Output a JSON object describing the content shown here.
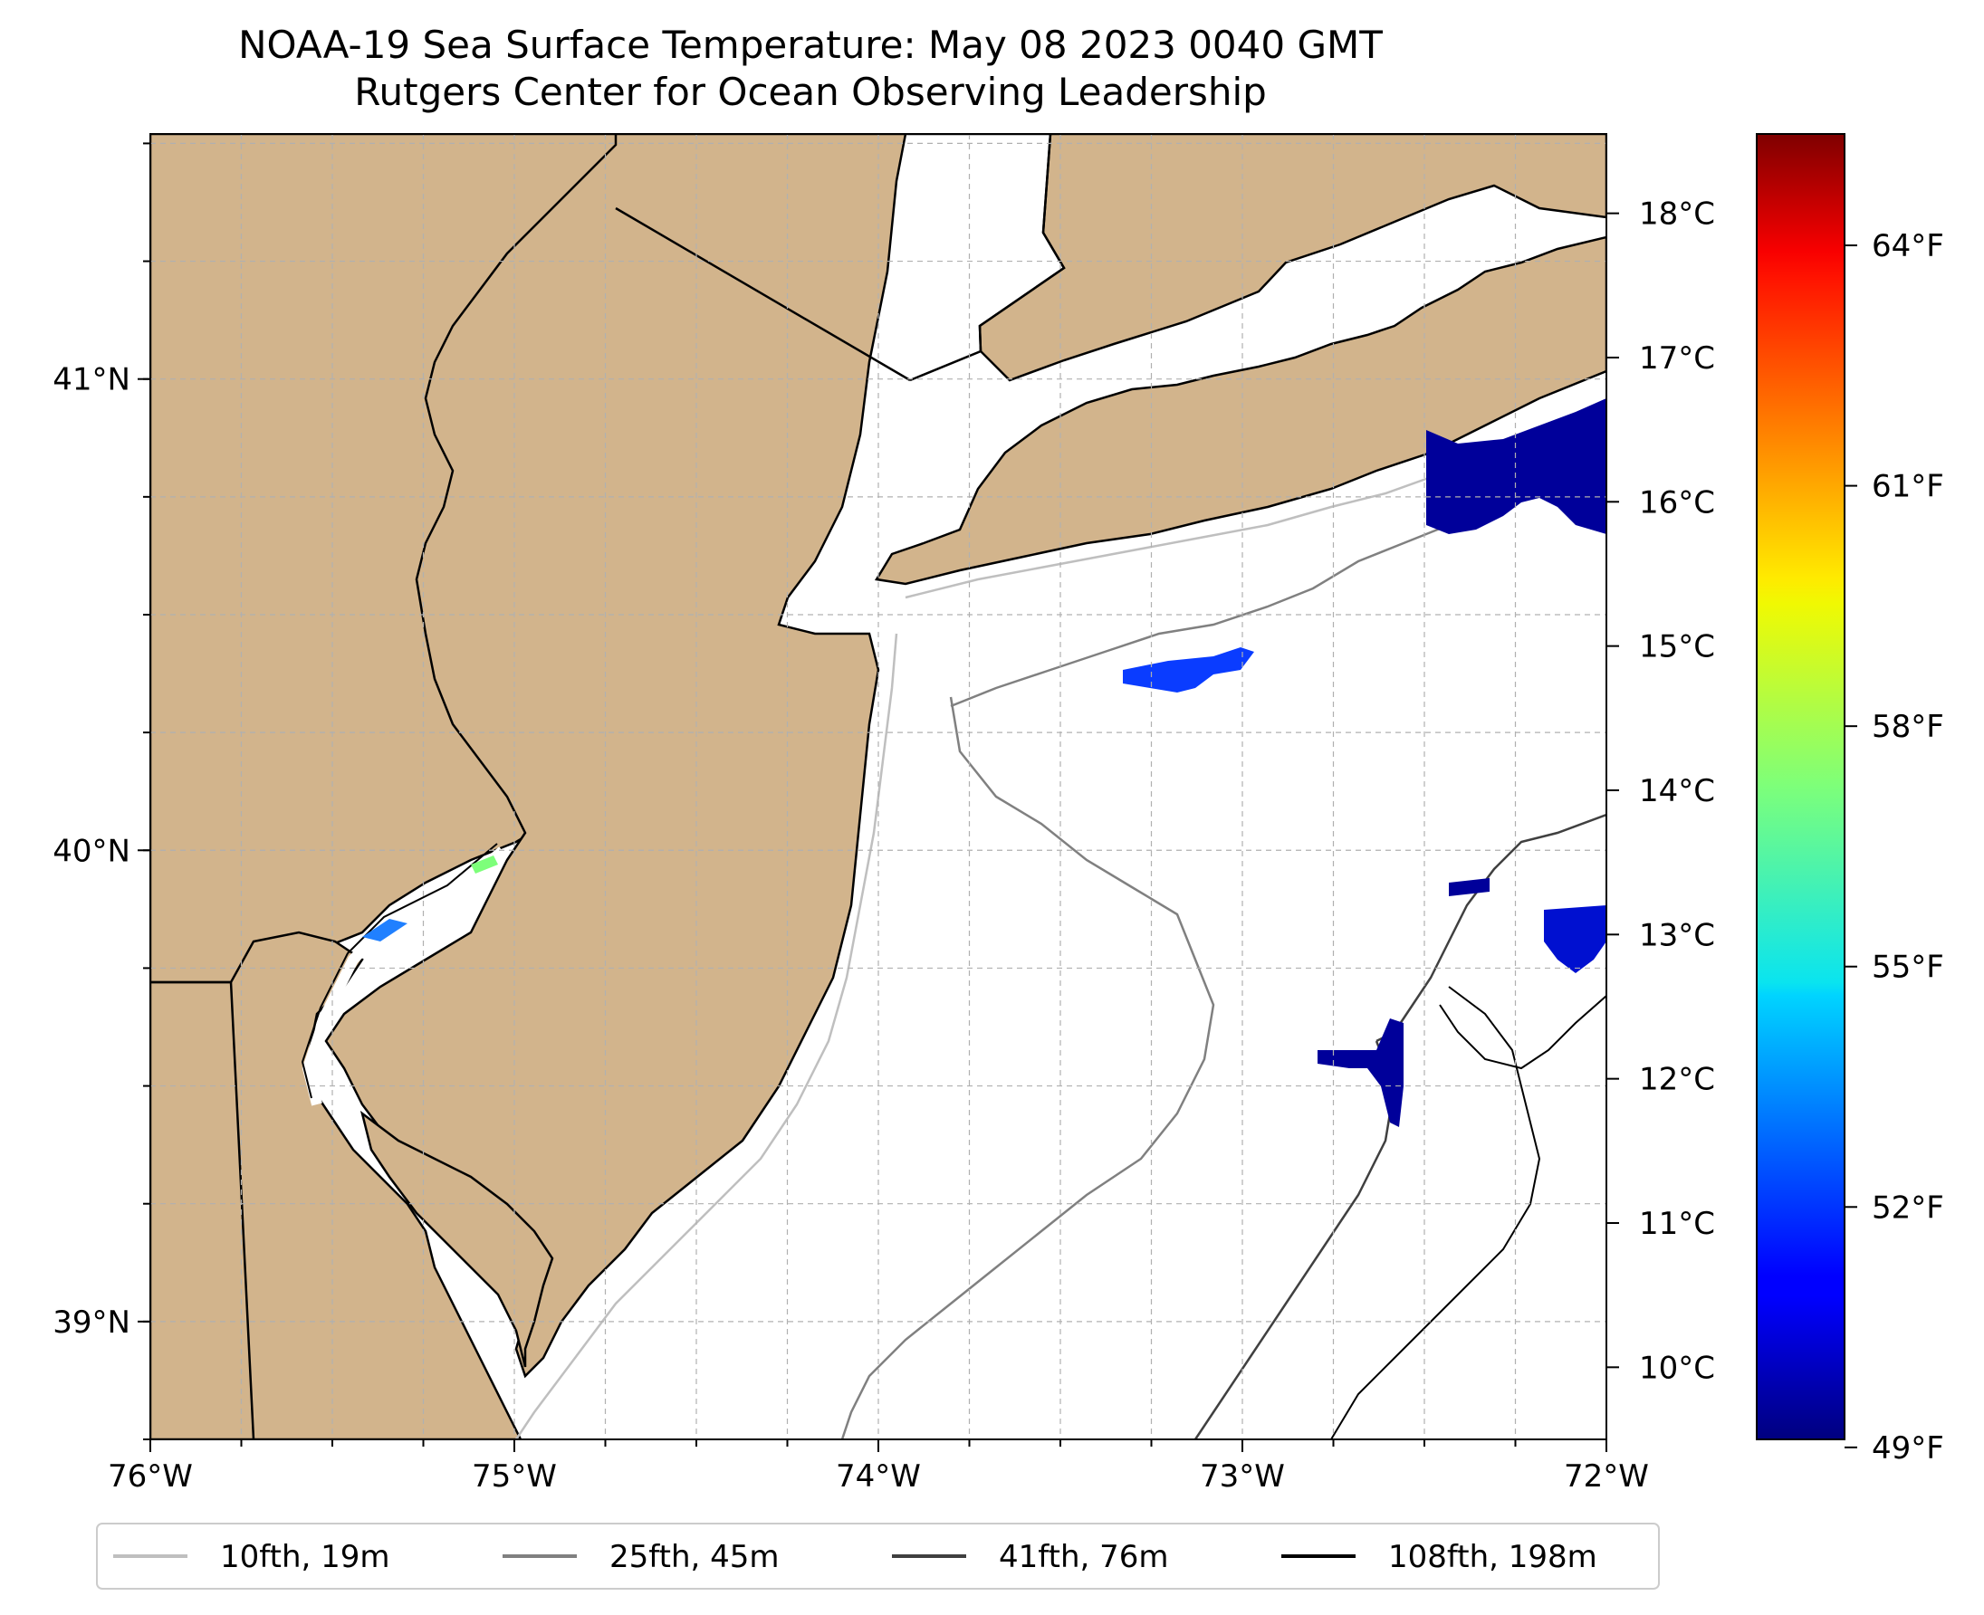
{
  "title": {
    "line1": "NOAA-19 Sea Surface Temperature: May 08 2023 0040 GMT",
    "line2": "Rutgers Center for Ocean Observing Leadership"
  },
  "map": {
    "lon_range": [
      -76,
      -72
    ],
    "lat_range": [
      38.75,
      41.52
    ],
    "land_color": "#d2b48c",
    "ocean_color": "#ffffff",
    "lon_ticks": [
      {
        "value": -76,
        "label": "76°W"
      },
      {
        "value": -75,
        "label": "75°W"
      },
      {
        "value": -74,
        "label": "74°W"
      },
      {
        "value": -73,
        "label": "73°W"
      },
      {
        "value": -72,
        "label": "72°W"
      }
    ],
    "lat_ticks": [
      {
        "value": 41,
        "label": "41°N"
      },
      {
        "value": 40,
        "label": "40°N"
      },
      {
        "value": 39,
        "label": "39°N"
      }
    ],
    "gridlines": true
  },
  "colorbar": {
    "colormap": "jet",
    "celsius_ticks": [
      {
        "value": 18,
        "label": "18°C"
      },
      {
        "value": 17,
        "label": "17°C"
      },
      {
        "value": 16,
        "label": "16°C"
      },
      {
        "value": 15,
        "label": "15°C"
      },
      {
        "value": 14,
        "label": "14°C"
      },
      {
        "value": 13,
        "label": "13°C"
      },
      {
        "value": 12,
        "label": "12°C"
      },
      {
        "value": 11,
        "label": "11°C"
      },
      {
        "value": 10,
        "label": "10°C"
      }
    ],
    "fahrenheit_ticks": [
      {
        "value": 64,
        "label": "64°F"
      },
      {
        "value": 61,
        "label": "61°F"
      },
      {
        "value": 58,
        "label": "58°F"
      },
      {
        "value": 55,
        "label": "55°F"
      },
      {
        "value": 52,
        "label": "52°F"
      },
      {
        "value": 49,
        "label": "49°F"
      }
    ]
  },
  "legend": {
    "placement": "bottom",
    "items": [
      {
        "label": "10fth, 19m",
        "color": "#bfbfbf"
      },
      {
        "label": "25fth, 45m",
        "color": "#808080"
      },
      {
        "label": "41fth, 76m",
        "color": "#404040"
      },
      {
        "label": "108fth, 198m",
        "color": "#000000"
      }
    ]
  }
}
